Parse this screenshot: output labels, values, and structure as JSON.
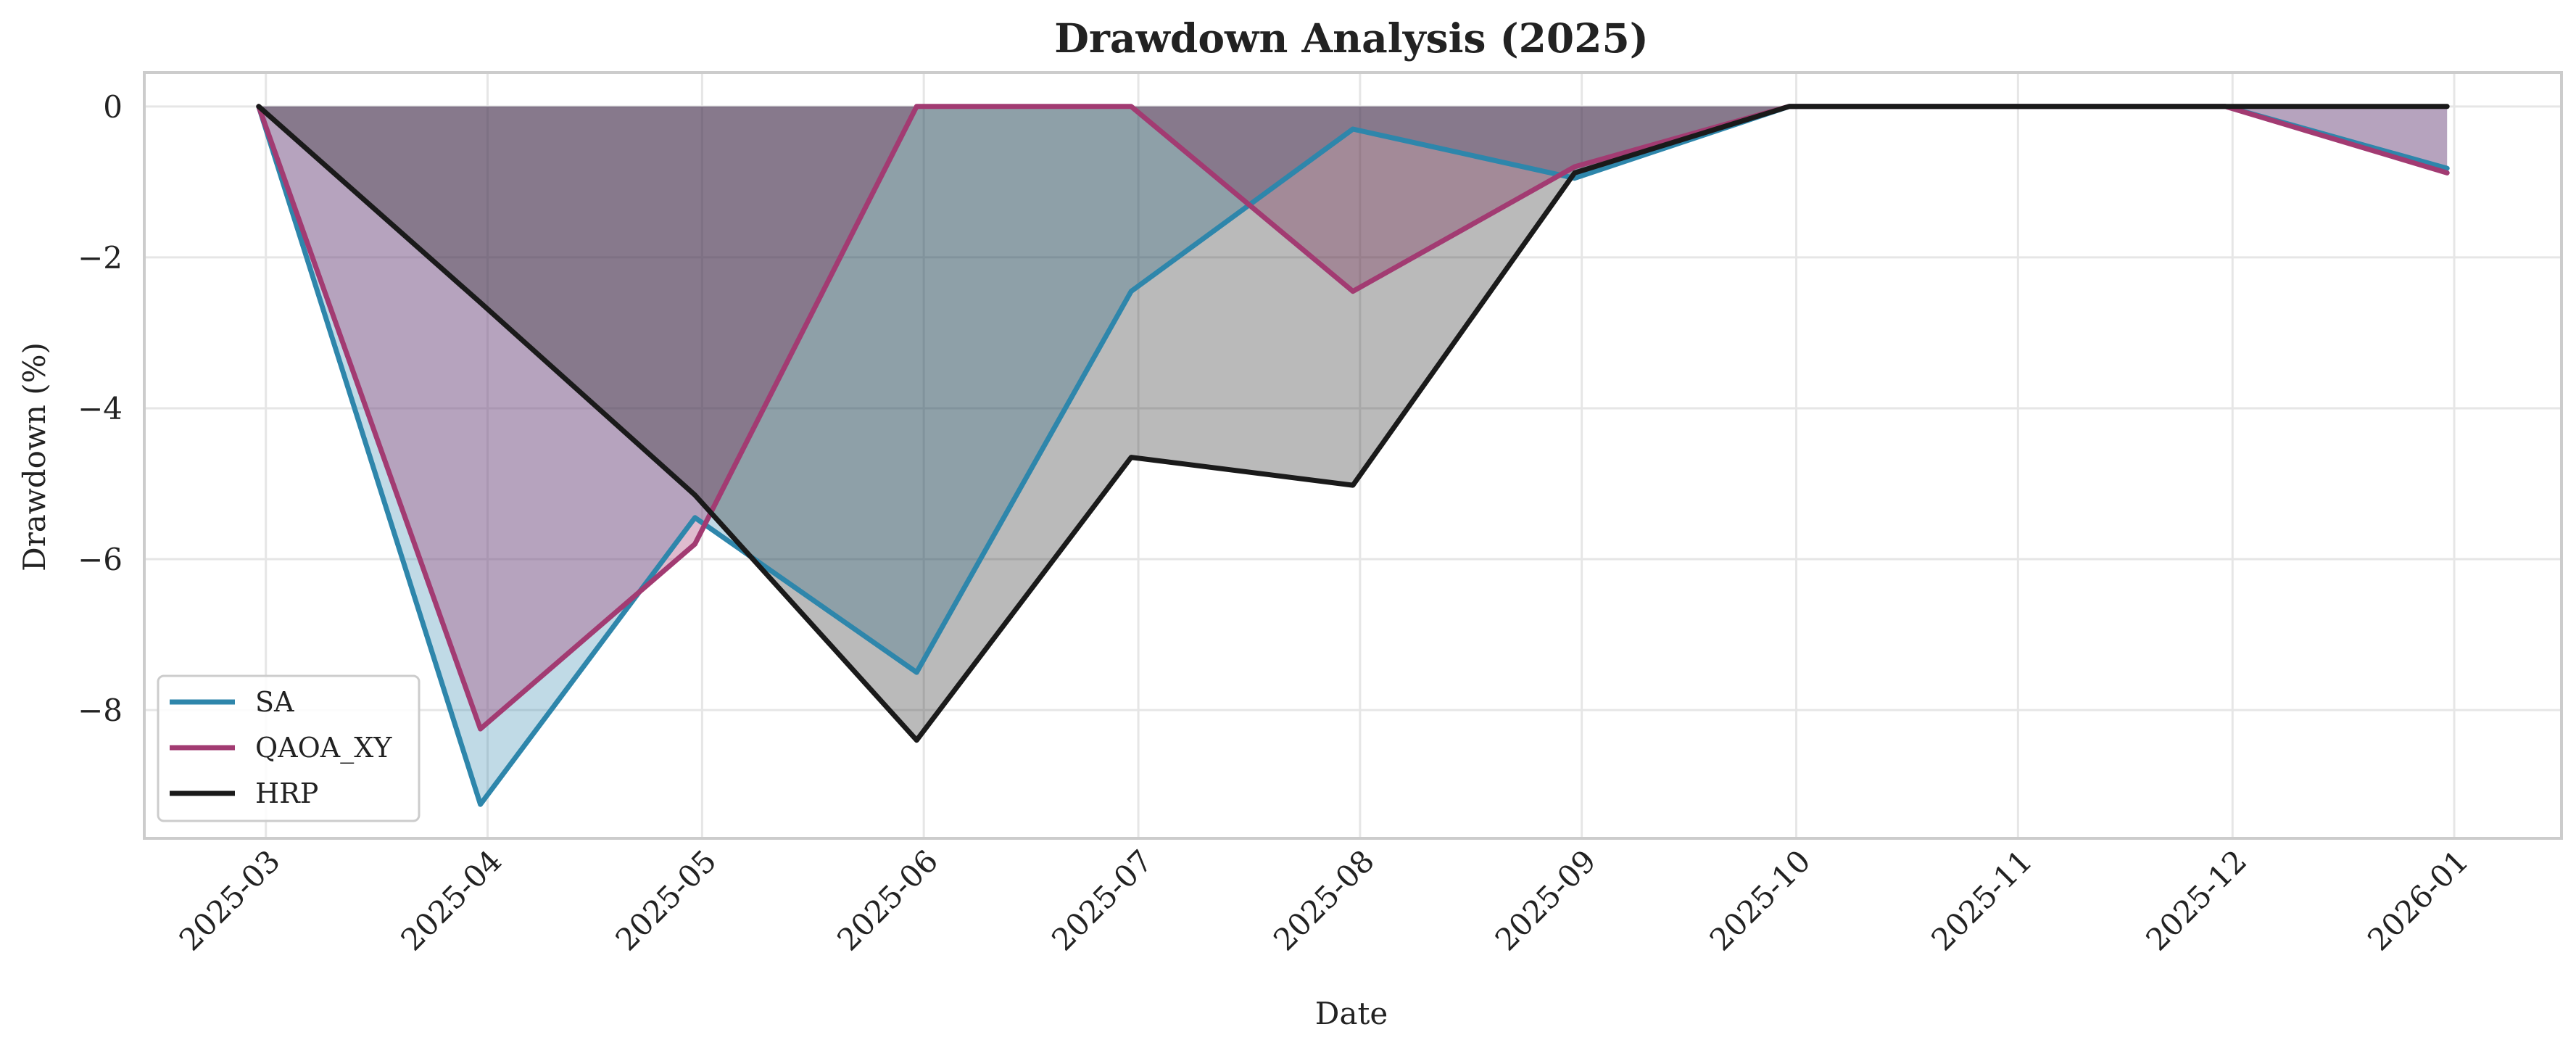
{
  "chart_data": {
    "type": "area",
    "title": "Drawdown Analysis (2025)",
    "xlabel": "Date",
    "ylabel": "Drawdown (%)",
    "x": [
      "2025-02-28",
      "2025-03-31",
      "2025-04-30",
      "2025-05-31",
      "2025-06-30",
      "2025-07-31",
      "2025-08-31",
      "2025-09-30",
      "2025-10-31",
      "2025-11-30",
      "2025-12-31"
    ],
    "xticks": [
      "2025-03",
      "2025-04",
      "2025-05",
      "2025-06",
      "2025-07",
      "2025-08",
      "2025-09",
      "2025-10",
      "2025-11",
      "2025-12",
      "2026-01"
    ],
    "yticks": [
      0,
      -2,
      -4,
      -6,
      -8
    ],
    "ylim": [
      -9.7,
      0.45
    ],
    "xlim": [
      "2025-02-12",
      "2026-01-16"
    ],
    "grid": true,
    "legend_position": "lower-left",
    "series": [
      {
        "name": "SA",
        "color": "#2e86ab",
        "fill_opacity": 0.3,
        "values": [
          0,
          -9.25,
          -5.45,
          -7.5,
          -2.45,
          -0.3,
          -0.95,
          0,
          0,
          0,
          -0.82
        ]
      },
      {
        "name": "QAOA_XY",
        "color": "#a23b72",
        "fill_opacity": 0.35,
        "values": [
          0,
          -8.25,
          -5.8,
          0,
          0,
          -2.45,
          -0.8,
          0,
          0,
          0,
          -0.88
        ]
      },
      {
        "name": "HRP",
        "color": "#1a1a1a",
        "fill_opacity": 0.3,
        "values": [
          0,
          -2.6,
          -5.15,
          -8.4,
          -4.65,
          -5.02,
          -0.88,
          0,
          0,
          0,
          0
        ]
      }
    ]
  }
}
